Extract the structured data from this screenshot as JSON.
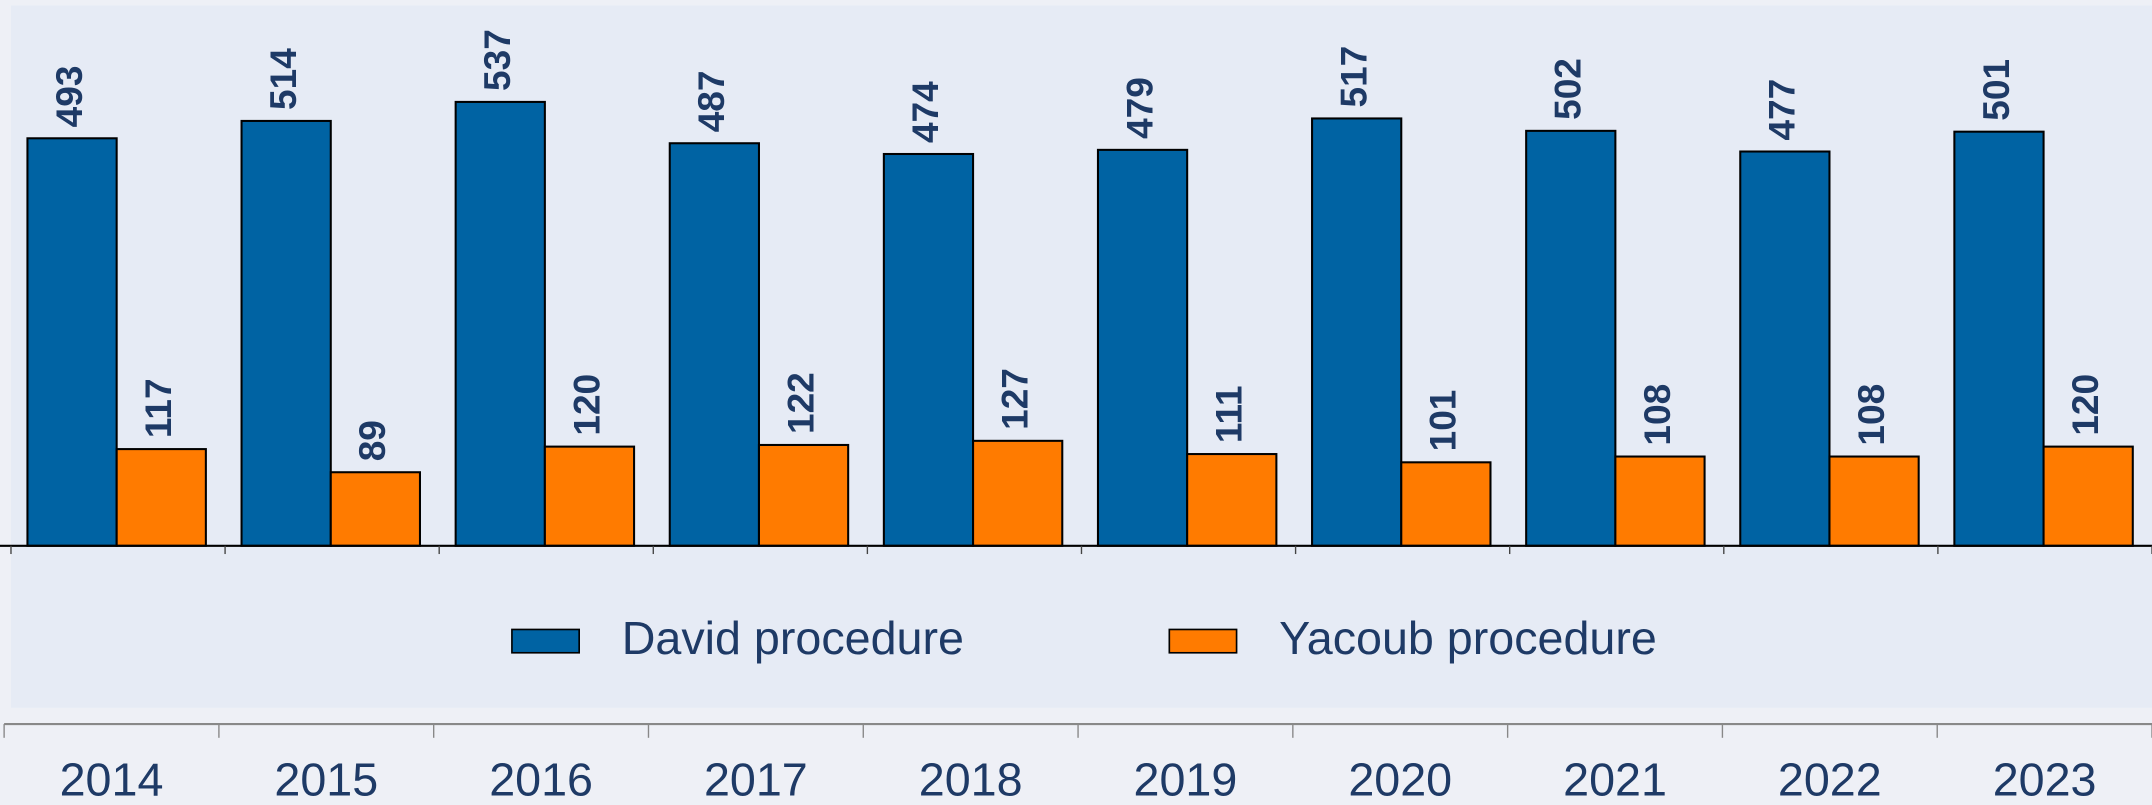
{
  "chart_data": {
    "type": "bar",
    "categories": [
      "2014",
      "2015",
      "2016",
      "2017",
      "2018",
      "2019",
      "2020",
      "2021",
      "2022",
      "2023"
    ],
    "series": [
      {
        "name": "David procedure",
        "color": "#0063a3",
        "values": [
          493,
          514,
          537,
          487,
          474,
          479,
          517,
          502,
          477,
          501
        ]
      },
      {
        "name": "Yacoub procedure",
        "color": "#ff7b00",
        "values": [
          117,
          89,
          120,
          122,
          127,
          111,
          101,
          108,
          108,
          120
        ]
      }
    ],
    "ylim": [
      0,
      652
    ],
    "legend": "bottom"
  }
}
